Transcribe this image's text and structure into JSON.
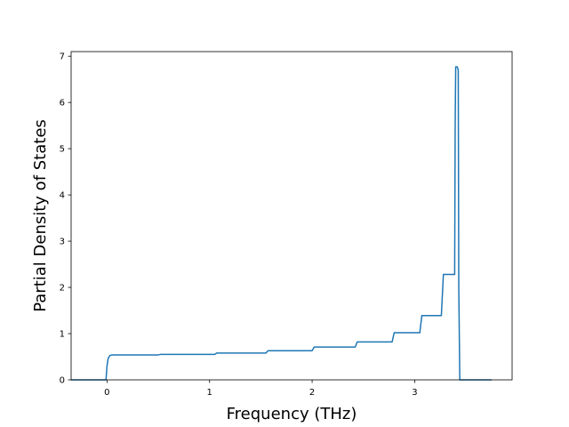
{
  "chart_data": {
    "type": "line",
    "title": "",
    "xlabel": "Frequency (THz)",
    "ylabel": "Partial Density of States",
    "xlim": [
      -0.35,
      3.95
    ],
    "ylim": [
      0,
      7.1
    ],
    "xticks": [
      0,
      1,
      2,
      3
    ],
    "yticks": [
      0,
      1,
      2,
      3,
      4,
      5,
      6,
      7
    ],
    "grid": false,
    "legend": "none",
    "series": [
      {
        "color": "#1f77b4",
        "x": [
          -0.35,
          -0.01,
          0.0,
          0.01,
          0.02,
          0.03,
          0.05,
          0.5,
          0.52,
          1.05,
          1.07,
          1.55,
          1.57,
          2.0,
          2.02,
          2.42,
          2.44,
          2.78,
          2.8,
          3.05,
          3.07,
          3.26,
          3.28,
          3.39,
          3.395,
          3.4,
          3.415,
          3.425,
          3.43,
          3.44,
          3.75
        ],
        "y": [
          0,
          0,
          0.3,
          0.45,
          0.5,
          0.53,
          0.54,
          0.54,
          0.55,
          0.55,
          0.58,
          0.58,
          0.63,
          0.63,
          0.71,
          0.71,
          0.82,
          0.82,
          1.02,
          1.02,
          1.39,
          1.39,
          2.28,
          2.28,
          5.5,
          6.77,
          6.77,
          6.7,
          2.0,
          0,
          0
        ]
      }
    ]
  }
}
